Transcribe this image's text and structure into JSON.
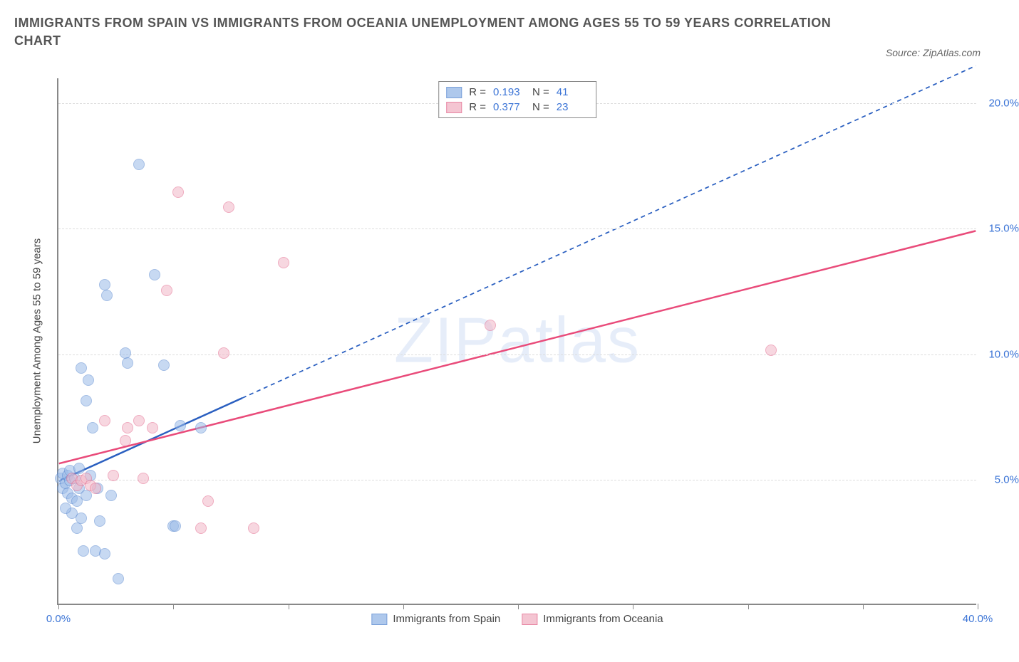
{
  "title_line1": "IMMIGRANTS FROM SPAIN VS IMMIGRANTS FROM OCEANIA UNEMPLOYMENT AMONG AGES 55 TO 59 YEARS CORRELATION",
  "title_line2": "CHART",
  "source": "Source: ZipAtlas.com",
  "watermark": "ZIPatlas",
  "y_axis_label": "Unemployment Among Ages 55 to 59 years",
  "chart": {
    "type": "scatter",
    "background_color": "#ffffff",
    "grid_color": "#dddddd",
    "axis_color": "#888888",
    "xlim": [
      0,
      40
    ],
    "ylim": [
      0,
      21
    ],
    "x_ticks": [
      0,
      5,
      10,
      15,
      20,
      25,
      30,
      35,
      40
    ],
    "x_tick_labels": {
      "0": "0.0%",
      "40": "40.0%"
    },
    "y_ticks": [
      5,
      10,
      15,
      20
    ],
    "y_tick_labels": {
      "5": "5.0%",
      "10": "10.0%",
      "15": "15.0%",
      "20": "20.0%"
    },
    "point_radius": 8,
    "series": [
      {
        "name": "Immigrants from Spain",
        "label": "Immigrants from Spain",
        "fill_color": "#9bbbe8",
        "fill_opacity": 0.55,
        "stroke_color": "#5a89d0",
        "line_color": "#2a5fc0",
        "line_width": 2.5,
        "line_dash": "6 5",
        "R": "0.193",
        "N": "41",
        "trend": {
          "x1": 0,
          "y1": 4.9,
          "x2": 40,
          "y2": 21.5
        },
        "trend_solid_until_x": 8,
        "points": [
          [
            0.1,
            5.0
          ],
          [
            0.2,
            4.6
          ],
          [
            0.2,
            5.2
          ],
          [
            0.3,
            4.8
          ],
          [
            0.4,
            5.1
          ],
          [
            0.4,
            4.4
          ],
          [
            0.5,
            4.9
          ],
          [
            0.5,
            5.3
          ],
          [
            0.6,
            4.2
          ],
          [
            0.6,
            3.6
          ],
          [
            0.7,
            5.0
          ],
          [
            0.8,
            4.1
          ],
          [
            0.8,
            3.0
          ],
          [
            0.9,
            4.6
          ],
          [
            1.0,
            3.4
          ],
          [
            1.0,
            9.4
          ],
          [
            1.1,
            2.1
          ],
          [
            1.2,
            4.3
          ],
          [
            1.2,
            8.1
          ],
          [
            1.3,
            8.9
          ],
          [
            1.5,
            7.0
          ],
          [
            1.6,
            2.1
          ],
          [
            1.7,
            4.6
          ],
          [
            1.8,
            3.3
          ],
          [
            2.0,
            2.0
          ],
          [
            2.0,
            12.7
          ],
          [
            2.1,
            12.3
          ],
          [
            2.3,
            4.3
          ],
          [
            2.6,
            1.0
          ],
          [
            2.9,
            10.0
          ],
          [
            3.0,
            9.6
          ],
          [
            3.5,
            17.5
          ],
          [
            4.2,
            13.1
          ],
          [
            4.6,
            9.5
          ],
          [
            5.0,
            3.1
          ],
          [
            5.1,
            3.1
          ],
          [
            5.3,
            7.1
          ],
          [
            6.2,
            7.0
          ],
          [
            1.4,
            5.1
          ],
          [
            0.3,
            3.8
          ],
          [
            0.9,
            5.4
          ]
        ]
      },
      {
        "name": "Immigrants from Oceania",
        "label": "Immigrants from Oceania",
        "fill_color": "#f2b7c8",
        "fill_opacity": 0.55,
        "stroke_color": "#e36a8e",
        "line_color": "#e94b7a",
        "line_width": 2.5,
        "line_dash": "none",
        "R": "0.377",
        "N": "23",
        "trend": {
          "x1": 0,
          "y1": 5.6,
          "x2": 40,
          "y2": 14.9
        },
        "points": [
          [
            0.6,
            5.0
          ],
          [
            0.8,
            4.7
          ],
          [
            1.0,
            4.9
          ],
          [
            1.2,
            5.0
          ],
          [
            1.4,
            4.7
          ],
          [
            1.6,
            4.6
          ],
          [
            2.0,
            7.3
          ],
          [
            2.4,
            5.1
          ],
          [
            2.9,
            6.5
          ],
          [
            3.0,
            7.0
          ],
          [
            3.5,
            7.3
          ],
          [
            3.7,
            5.0
          ],
          [
            4.1,
            7.0
          ],
          [
            4.7,
            12.5
          ],
          [
            5.2,
            16.4
          ],
          [
            6.2,
            3.0
          ],
          [
            6.5,
            4.1
          ],
          [
            7.2,
            10.0
          ],
          [
            7.4,
            15.8
          ],
          [
            8.5,
            3.0
          ],
          [
            9.8,
            13.6
          ],
          [
            18.8,
            11.1
          ],
          [
            31.0,
            10.1
          ]
        ]
      }
    ]
  },
  "legend_top": {
    "r_label": "R =",
    "n_label": "N ="
  }
}
